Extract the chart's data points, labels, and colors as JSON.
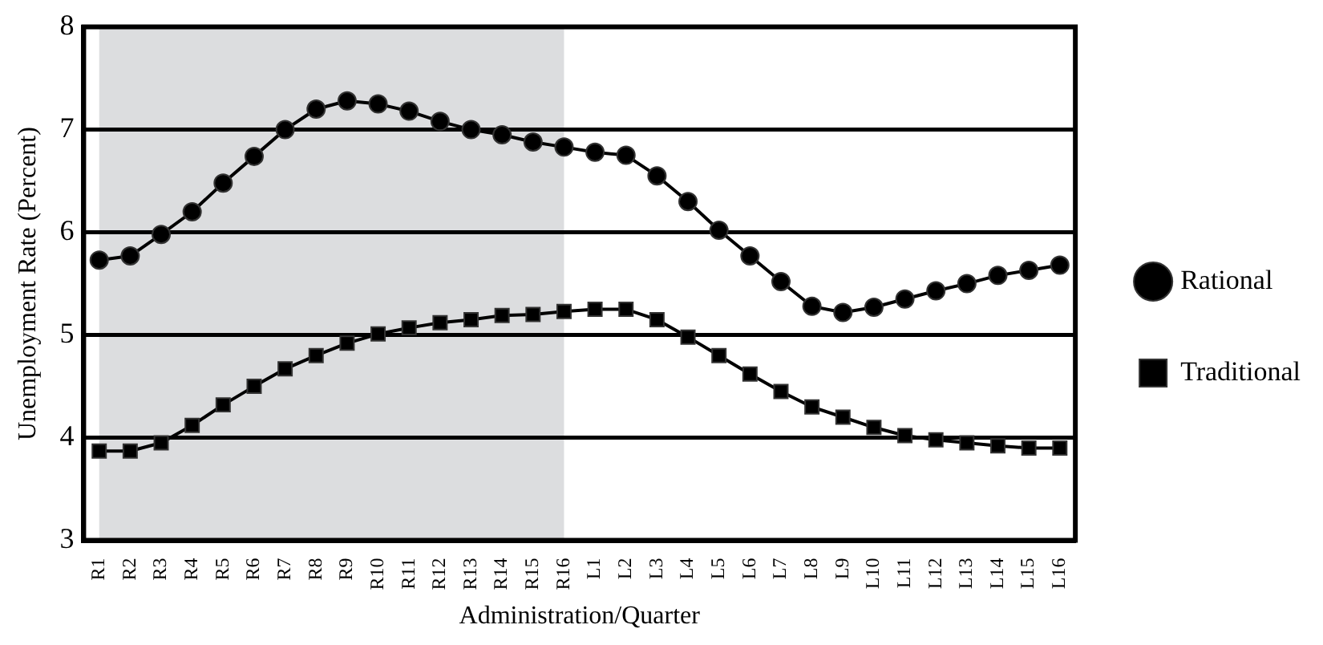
{
  "chart_data": {
    "type": "line",
    "xlabel": "Administration/Quarter",
    "ylabel": "Unemployment Rate (Percent)",
    "categories": [
      "R1",
      "R2",
      "R3",
      "R4",
      "R5",
      "R6",
      "R7",
      "R8",
      "R9",
      "R10",
      "R11",
      "R12",
      "R13",
      "R14",
      "R15",
      "R16",
      "L1",
      "L2",
      "L3",
      "L4",
      "L5",
      "L6",
      "L7",
      "L8",
      "L9",
      "L10",
      "L11",
      "L12",
      "L13",
      "L14",
      "L15",
      "L16"
    ],
    "series": [
      {
        "name": "Rational",
        "color": "#000000",
        "marker": "circle",
        "values": [
          5.73,
          5.77,
          5.98,
          6.2,
          6.48,
          6.74,
          7.0,
          7.2,
          7.28,
          7.25,
          7.18,
          7.08,
          7.0,
          6.95,
          6.88,
          6.83,
          6.78,
          6.75,
          6.55,
          6.3,
          6.02,
          5.77,
          5.52,
          5.28,
          5.22,
          5.27,
          5.35,
          5.43,
          5.5,
          5.58,
          5.63,
          5.68
        ]
      },
      {
        "name": "Traditional",
        "color": "#000000",
        "marker": "square",
        "values": [
          3.87,
          3.87,
          3.95,
          4.12,
          4.32,
          4.5,
          4.67,
          4.8,
          4.92,
          5.01,
          5.07,
          5.12,
          5.15,
          5.19,
          5.2,
          5.23,
          5.25,
          5.25,
          5.15,
          4.98,
          4.8,
          4.62,
          4.45,
          4.3,
          4.2,
          4.1,
          4.02,
          3.98,
          3.95,
          3.92,
          3.9,
          3.9
        ]
      }
    ],
    "ylim": [
      3,
      8
    ],
    "yticks": [
      3,
      4,
      5,
      6,
      7,
      8
    ],
    "grid": "y",
    "legend": "right",
    "line_style": "solid",
    "bands": [
      {
        "axis": "x",
        "from": "R1",
        "to": "R16",
        "color": "#dcdddf"
      }
    ]
  }
}
